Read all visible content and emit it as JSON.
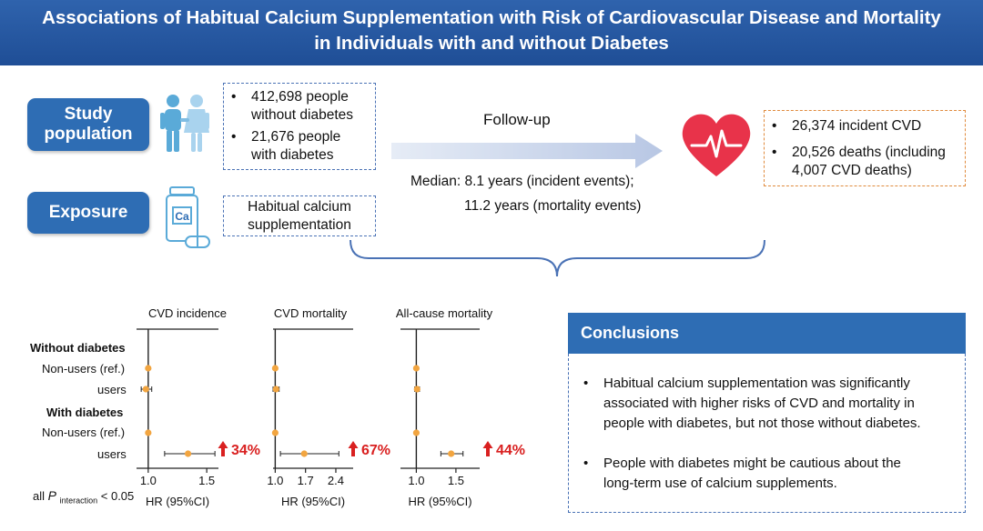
{
  "title": {
    "line1": "Associations of Habitual Calcium Supplementation with Risk of Cardiovascular Disease and Mortality",
    "line2": "in Individuals with and without Diabetes"
  },
  "study_population": {
    "label_line1": "Study",
    "label_line2": "population",
    "items": [
      {
        "line1": "412,698 people",
        "line2": "without diabetes"
      },
      {
        "line1": "21,676 people",
        "line2": "with diabetes"
      }
    ]
  },
  "exposure": {
    "label": "Exposure",
    "icon_text": "Ca",
    "text_line1": "Habitual calcium",
    "text_line2": "supplementation"
  },
  "followup": {
    "label": "Follow-up",
    "median_line1": "Median: 8.1 years (incident events);",
    "median_line2": "11.2 years (mortality events)"
  },
  "outcomes": {
    "item1": "26,374 incident CVD",
    "item2_line1": "20,526 deaths (including",
    "item2_line2": "4,007 CVD deaths)"
  },
  "forest": {
    "row_labels": {
      "without_header": "Without diabetes",
      "without_nonusers": "Non-users (ref.)",
      "without_users": "users",
      "with_header": "With diabetes",
      "with_nonusers": "Non-users (ref.)",
      "with_users": "users"
    },
    "xlabel": "HR (95%CI)",
    "footnote_all": "all",
    "footnote_p": "P",
    "footnote_sub": "interaction",
    "footnote_tail": "< 0.05",
    "colors": {
      "point": "#f2a540",
      "arrow": "#d92020",
      "axis": "#222222"
    },
    "panels": [
      {
        "title": "CVD incidence",
        "ticks": [
          "1.0",
          "1.5"
        ],
        "highlight": "34%"
      },
      {
        "title": "CVD mortality",
        "ticks": [
          "1.0",
          "1.7",
          "2.4"
        ],
        "highlight": "67%"
      },
      {
        "title": "All-cause mortality",
        "ticks": [
          "1.0",
          "1.5"
        ],
        "highlight": "44%"
      }
    ]
  },
  "chart_data": {
    "type": "scatter",
    "title": "",
    "xlabel": "HR (95%CI)",
    "categories": [
      "Without diabetes: Non-users (ref.)",
      "Without diabetes: users",
      "With diabetes: Non-users (ref.)",
      "With diabetes: users"
    ],
    "series": [
      {
        "name": "CVD incidence",
        "hr": [
          1.0,
          0.98,
          1.0,
          1.34
        ],
        "ci_low": [
          1.0,
          0.94,
          1.0,
          1.14
        ],
        "ci_high": [
          1.0,
          1.03,
          1.0,
          1.57
        ],
        "xlim": [
          0.9,
          1.6
        ]
      },
      {
        "name": "CVD mortality",
        "hr": [
          1.0,
          1.02,
          1.0,
          1.67
        ],
        "ci_low": [
          1.0,
          0.95,
          1.0,
          1.12
        ],
        "ci_high": [
          1.0,
          1.09,
          1.0,
          2.47
        ],
        "xlim": [
          0.95,
          2.8
        ]
      },
      {
        "name": "All-cause mortality",
        "hr": [
          1.0,
          1.01,
          1.0,
          1.44
        ],
        "ci_low": [
          1.0,
          0.98,
          1.0,
          1.31
        ],
        "ci_high": [
          1.0,
          1.04,
          1.0,
          1.59
        ],
        "xlim": [
          0.8,
          1.8
        ]
      }
    ]
  },
  "conclusions": {
    "title": "Conclusions",
    "c1_line1": "Habitual calcium supplementation was significantly",
    "c1_line2": "associated with higher risks of CVD and mortality in",
    "c1_line3": "people with diabetes, but not those without diabetes.",
    "c2_line1": "People with diabetes might be cautious about the",
    "c2_line2": "long-term use of calcium supplements."
  },
  "bullet": "•",
  "icons": [
    "people-icon",
    "calcium-bottle-icon",
    "follow-up-arrow-icon",
    "heart-ecg-icon",
    "brace-icon",
    "red-up-arrow-icon"
  ]
}
